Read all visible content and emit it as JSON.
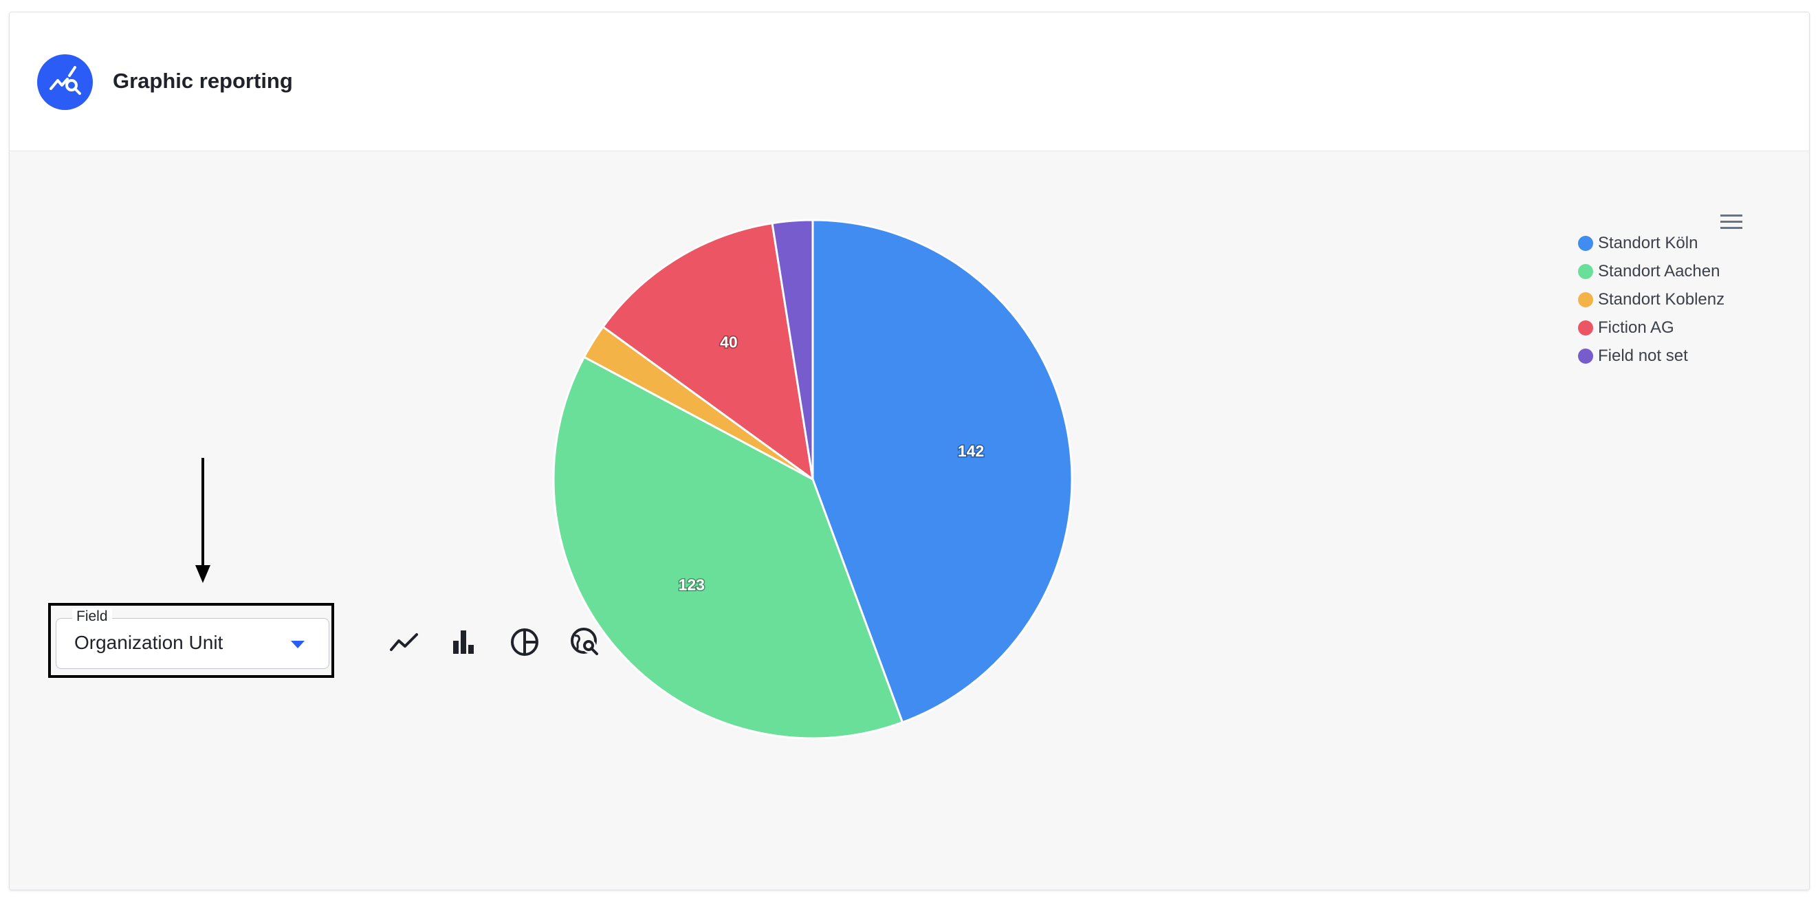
{
  "header": {
    "title": "Graphic reporting",
    "icon": "analytics-search-icon"
  },
  "chart_data": {
    "type": "pie",
    "categories": [
      "Standort Köln",
      "Standort Aachen",
      "Standort Koblenz",
      "Fiction AG",
      "Field not set"
    ],
    "values": [
      142,
      123,
      7,
      40,
      8
    ],
    "data_labels": [
      "142",
      "123",
      "",
      "40",
      ""
    ],
    "colors": [
      "#418cf0",
      "#6adf9a",
      "#f4b346",
      "#eb5564",
      "#765ccc"
    ],
    "legend_position": "top-right",
    "title": ""
  },
  "legend": {
    "items": [
      {
        "label": "Standort Köln",
        "color": "#418cf0"
      },
      {
        "label": "Standort Aachen",
        "color": "#6adf9a"
      },
      {
        "label": "Standort Koblenz",
        "color": "#f4b346"
      },
      {
        "label": "Fiction AG",
        "color": "#eb5564"
      },
      {
        "label": "Field not set",
        "color": "#765ccc"
      }
    ]
  },
  "chart_menu": {
    "icon": "hamburger-menu-icon"
  },
  "field": {
    "label": "Field",
    "value": "Organization Unit"
  },
  "toolbar": {
    "icons": [
      "line-chart-icon",
      "bar-chart-icon",
      "pie-chart-icon",
      "map-search-icon"
    ]
  }
}
